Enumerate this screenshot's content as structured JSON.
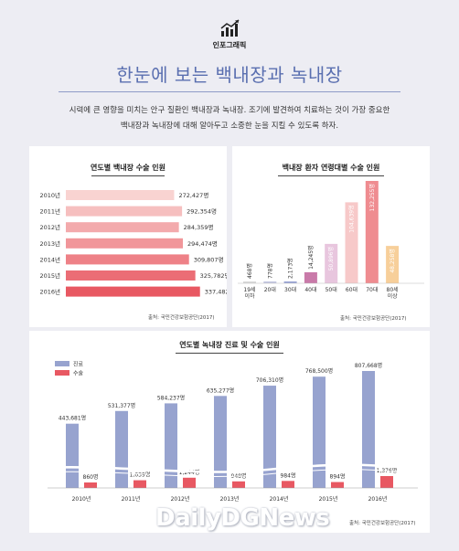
{
  "header": {
    "label": "인포그래픽",
    "title": "한눈에 보는 백내장과 녹내장",
    "intro_line1": "시력에 큰 영향을 미치는 안구 질환인 백내장과 녹내장. 조기에 발견하여 치료하는 것이 가장 중요한",
    "intro_line2": "백내장과 녹내장에 대해 알아두고 소중한 눈을 지킬 수 있도록 하자."
  },
  "watermark": "DailyDGNews",
  "colors": {
    "bar_light": "#f9d3d1",
    "bar_dark": "#e85862",
    "glaucoma_treatment": "#97a3cf",
    "glaucoma_surgery": "#e85862",
    "age_colors": [
      "#d9d9d9",
      "#c3c7e0",
      "#9aa5d4",
      "#c97aa9",
      "#e8c6de",
      "#f7c9c9",
      "#ef8c90",
      "#f7cf9a"
    ]
  },
  "chart_data": [
    {
      "type": "bar",
      "orientation": "horizontal",
      "title": "연도별 백내장 수술 인원",
      "categories": [
        "2010년",
        "2011년",
        "2012년",
        "2013년",
        "2014년",
        "2015년",
        "2016년"
      ],
      "values": [
        272427,
        292354,
        284359,
        294474,
        309807,
        325782,
        337482
      ],
      "value_labels": [
        "272,427명",
        "292,354명",
        "284,359명",
        "294,474명",
        "309,807명",
        "325,782명",
        "337,482명"
      ],
      "source": "출처: 국민건강보험공단(2017)"
    },
    {
      "type": "bar",
      "title": "백내장 환자 연령대별 수술 인원",
      "categories": [
        "19세 이하",
        "20대",
        "30대",
        "40대",
        "50대",
        "60대",
        "70대",
        "80세 이상"
      ],
      "category_lines": [
        [
          "19세",
          "이하"
        ],
        [
          "20대"
        ],
        [
          "30대"
        ],
        [
          "40대"
        ],
        [
          "50대"
        ],
        [
          "60대"
        ],
        [
          "70대"
        ],
        [
          "80세",
          "이상"
        ]
      ],
      "values": [
        468,
        778,
        2173,
        14245,
        50896,
        104639,
        132255,
        48258
      ],
      "value_labels": [
        "468명",
        "778명",
        "2,173명",
        "14,245명",
        "50,896명",
        "104,639명",
        "132,255명",
        "48,258명"
      ],
      "source": "출처: 국민건강보험공단(2017)"
    },
    {
      "type": "bar",
      "title": "연도별 녹내장 진료 및 수술 인원",
      "categories": [
        "2010년",
        "2011년",
        "2012년",
        "2013년",
        "2014년",
        "2015년",
        "2016년"
      ],
      "series": [
        {
          "name": "진료",
          "values": [
            443681,
            531377,
            584237,
            635277,
            706310,
            768500,
            807668
          ],
          "labels": [
            "443,681명",
            "531,377명",
            "584,237명",
            "635,277명",
            "706,310명",
            "768,500명",
            "807,668명"
          ]
        },
        {
          "name": "수술",
          "values": [
            860,
            1039,
            1244,
            948,
            984,
            894,
            1376
          ],
          "labels": [
            "860명",
            "1,039명",
            "1,244명",
            "948명",
            "984명",
            "894명",
            "1,376명"
          ]
        }
      ],
      "axis_break": true,
      "legend": "top-left",
      "source": "출처: 국민건강보험공단(2017)"
    }
  ]
}
